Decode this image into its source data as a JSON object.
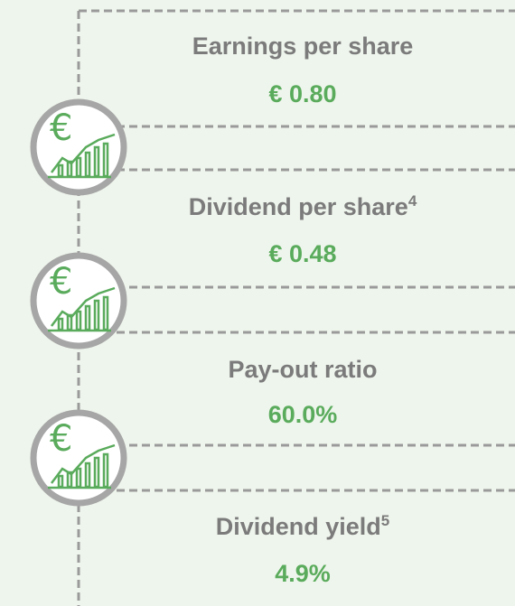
{
  "items": [
    {
      "label": "Earnings per share",
      "value": "€ 0.80"
    },
    {
      "label": "Dividend per share",
      "note": "4",
      "value": "€ 0.48"
    },
    {
      "label": "Pay-out ratio",
      "value": "60.0%"
    },
    {
      "label": "Dividend yield",
      "note": "5",
      "value": "4.9%"
    }
  ]
}
